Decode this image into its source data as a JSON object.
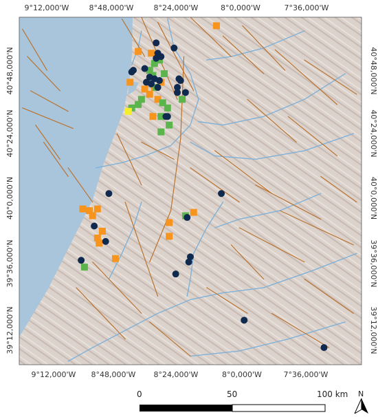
{
  "axes": {
    "top_ticks": [
      "9°12,000'W",
      "8°48,000'W",
      "8°24,000'W",
      "8°0,000'W",
      "7°36,000'W"
    ],
    "bottom_ticks": [
      "9°12,000'W",
      "8°48,000'W",
      "8°24,000'W",
      "8°0,000'W",
      "7°36,000'W"
    ],
    "left_ticks": [
      "40°48,000'N",
      "40°24,000'N",
      "40°0,000'N",
      "39°36,000'N",
      "39°12,000'N"
    ],
    "right_ticks": [
      "40°48,000'N",
      "40°24,000'N",
      "40°0,000'N",
      "39°36,000'N",
      "39°12,000'N"
    ]
  },
  "extent": {
    "lon_min": -9.35,
    "lon_max": -7.25,
    "lat_min": 39.0,
    "lat_max": 41.03
  },
  "colors": {
    "sea": "#a9c5dc",
    "land": "#dcd2cc",
    "river": "#7fb1d8",
    "fault": "#b9732e",
    "orange_site": "#f7941d",
    "green_site": "#5bb44c",
    "navy_site": "#0f2a4e",
    "yellow_site": "#f5ee2c"
  },
  "scale_bar": {
    "labels": [
      "0",
      "50",
      "100 km"
    ]
  },
  "north_arrow": {
    "label": "N",
    "icon": "north-arrow-icon"
  },
  "sites": {
    "orange": [
      [
        -8.14,
        40.98
      ],
      [
        -8.62,
        40.83
      ],
      [
        -8.54,
        40.82
      ],
      [
        -8.67,
        40.65
      ],
      [
        -8.58,
        40.61
      ],
      [
        -8.52,
        40.62
      ],
      [
        -8.55,
        40.58
      ],
      [
        -8.5,
        40.55
      ],
      [
        -8.48,
        40.65
      ],
      [
        -8.53,
        40.45
      ],
      [
        -8.96,
        39.91
      ],
      [
        -8.87,
        39.91
      ],
      [
        -8.92,
        39.9
      ],
      [
        -8.9,
        39.87
      ],
      [
        -8.84,
        39.78
      ],
      [
        -8.87,
        39.74
      ],
      [
        -8.86,
        39.71
      ],
      [
        -8.76,
        39.62
      ],
      [
        -8.43,
        39.83
      ],
      [
        -8.28,
        39.89
      ],
      [
        -8.43,
        39.75
      ]
    ],
    "green": [
      [
        -8.49,
        40.78
      ],
      [
        -8.52,
        40.76
      ],
      [
        -8.55,
        40.72
      ],
      [
        -8.53,
        40.69
      ],
      [
        -8.46,
        40.7
      ],
      [
        -8.51,
        40.62
      ],
      [
        -8.6,
        40.55
      ],
      [
        -8.62,
        40.52
      ],
      [
        -8.66,
        40.5
      ],
      [
        -8.47,
        40.53
      ],
      [
        -8.44,
        40.5
      ],
      [
        -8.48,
        40.45
      ],
      [
        -8.43,
        40.4
      ],
      [
        -8.48,
        40.36
      ],
      [
        -8.35,
        40.55
      ],
      [
        -8.33,
        39.87
      ],
      [
        -8.95,
        39.57
      ]
    ],
    "navy": [
      [
        -8.51,
        40.88
      ],
      [
        -8.4,
        40.85
      ],
      [
        -8.5,
        40.82
      ],
      [
        -8.48,
        40.8
      ],
      [
        -8.51,
        40.79
      ],
      [
        -8.58,
        40.73
      ],
      [
        -8.65,
        40.72
      ],
      [
        -8.66,
        40.71
      ],
      [
        -8.55,
        40.68
      ],
      [
        -8.52,
        40.67
      ],
      [
        -8.49,
        40.66
      ],
      [
        -8.57,
        40.65
      ],
      [
        -8.54,
        40.64
      ],
      [
        -8.5,
        40.62
      ],
      [
        -8.37,
        40.67
      ],
      [
        -8.36,
        40.66
      ],
      [
        -8.38,
        40.62
      ],
      [
        -8.38,
        40.59
      ],
      [
        -8.33,
        40.59
      ],
      [
        -8.44,
        40.45
      ],
      [
        -8.45,
        40.45
      ],
      [
        -8.8,
        40.0
      ],
      [
        -8.11,
        40.0
      ],
      [
        -8.89,
        39.81
      ],
      [
        -8.82,
        39.72
      ],
      [
        -8.32,
        39.86
      ],
      [
        -8.3,
        39.63
      ],
      [
        -8.31,
        39.6
      ],
      [
        -8.39,
        39.53
      ],
      [
        -8.97,
        39.61
      ],
      [
        -7.97,
        39.26
      ],
      [
        -7.48,
        39.1
      ]
    ],
    "yellow": [
      [
        -8.68,
        40.48
      ]
    ]
  },
  "faults": [
    [
      [
        -9.33,
        40.96
      ],
      [
        -9.18,
        40.72
      ]
    ],
    [
      [
        -9.3,
        40.8
      ],
      [
        -9.1,
        40.6
      ]
    ],
    [
      [
        -9.28,
        40.6
      ],
      [
        -9.05,
        40.48
      ]
    ],
    [
      [
        -9.33,
        40.5
      ],
      [
        -9.02,
        40.38
      ]
    ],
    [
      [
        -9.25,
        40.4
      ],
      [
        -9.1,
        40.2
      ]
    ],
    [
      [
        -9.2,
        40.3
      ],
      [
        -9.05,
        40.1
      ]
    ],
    [
      [
        -9.05,
        40.15
      ],
      [
        -8.9,
        39.95
      ]
    ],
    [
      [
        -8.72,
        41.02
      ],
      [
        -8.58,
        40.8
      ]
    ],
    [
      [
        -8.6,
        41.03
      ],
      [
        -8.38,
        40.55
      ]
    ],
    [
      [
        -8.5,
        41.0
      ],
      [
        -8.28,
        40.6
      ]
    ],
    [
      [
        -8.3,
        41.03
      ],
      [
        -8.05,
        40.8
      ]
    ],
    [
      [
        -8.1,
        40.92
      ],
      [
        -7.85,
        40.7
      ]
    ],
    [
      [
        -7.98,
        40.98
      ],
      [
        -7.72,
        40.72
      ]
    ],
    [
      [
        -7.78,
        40.84
      ],
      [
        -7.4,
        40.52
      ]
    ],
    [
      [
        -7.6,
        40.78
      ],
      [
        -7.28,
        40.58
      ]
    ],
    [
      [
        -8.34,
        40.8
      ],
      [
        -8.36,
        40.32
      ]
    ],
    [
      [
        -8.36,
        40.32
      ],
      [
        -8.42,
        39.9
      ]
    ],
    [
      [
        -8.42,
        39.9
      ],
      [
        -8.55,
        39.6
      ]
    ],
    [
      [
        -8.75,
        40.35
      ],
      [
        -8.6,
        40.05
      ]
    ],
    [
      [
        -8.7,
        39.95
      ],
      [
        -8.5,
        39.4
      ]
    ],
    [
      [
        -8.9,
        39.6
      ],
      [
        -8.6,
        39.3
      ]
    ],
    [
      [
        -9.0,
        39.45
      ],
      [
        -8.7,
        39.15
      ]
    ],
    [
      [
        -8.55,
        39.25
      ],
      [
        -8.3,
        39.05
      ]
    ],
    [
      [
        -8.3,
        40.15
      ],
      [
        -8.0,
        39.95
      ]
    ],
    [
      [
        -8.15,
        40.25
      ],
      [
        -7.8,
        40.0
      ]
    ],
    [
      [
        -7.9,
        40.05
      ],
      [
        -7.5,
        39.85
      ]
    ],
    [
      [
        -7.75,
        39.9
      ],
      [
        -7.3,
        39.7
      ]
    ],
    [
      [
        -8.0,
        39.8
      ],
      [
        -7.6,
        39.6
      ]
    ],
    [
      [
        -7.6,
        39.5
      ],
      [
        -7.3,
        39.3
      ]
    ],
    [
      [
        -7.8,
        39.3
      ],
      [
        -7.45,
        39.1
      ]
    ],
    [
      [
        -8.2,
        39.45
      ],
      [
        -7.95,
        39.3
      ]
    ],
    [
      [
        -8.05,
        39.7
      ],
      [
        -7.85,
        39.5
      ]
    ],
    [
      [
        -7.5,
        40.1
      ],
      [
        -7.28,
        39.95
      ]
    ],
    [
      [
        -8.6,
        40.3
      ],
      [
        -8.4,
        40.2
      ]
    ],
    [
      [
        -7.95,
        40.55
      ],
      [
        -7.65,
        40.3
      ]
    ],
    [
      [
        -7.7,
        40.45
      ],
      [
        -7.4,
        40.22
      ]
    ]
  ],
  "rivers": [
    [
      [
        -8.44,
        41.02
      ],
      [
        -8.4,
        40.85
      ],
      [
        -8.3,
        40.7
      ],
      [
        -8.25,
        40.55
      ],
      [
        -8.3,
        40.4
      ],
      [
        -8.42,
        40.28
      ],
      [
        -8.58,
        40.22
      ],
      [
        -8.72,
        40.18
      ],
      [
        -8.88,
        40.15
      ]
    ],
    [
      [
        -7.35,
        40.7
      ],
      [
        -7.6,
        40.55
      ],
      [
        -7.85,
        40.45
      ],
      [
        -8.1,
        40.4
      ],
      [
        -8.25,
        40.42
      ]
    ],
    [
      [
        -7.3,
        40.35
      ],
      [
        -7.6,
        40.25
      ],
      [
        -7.9,
        40.2
      ],
      [
        -8.15,
        40.22
      ],
      [
        -8.3,
        40.3
      ]
    ],
    [
      [
        -7.28,
        39.65
      ],
      [
        -7.55,
        39.55
      ],
      [
        -7.85,
        39.45
      ],
      [
        -8.1,
        39.42
      ],
      [
        -8.3,
        39.38
      ],
      [
        -8.5,
        39.3
      ],
      [
        -8.7,
        39.2
      ],
      [
        -8.9,
        39.1
      ],
      [
        -9.05,
        39.02
      ]
    ],
    [
      [
        -7.35,
        39.25
      ],
      [
        -7.7,
        39.15
      ],
      [
        -8.0,
        39.08
      ],
      [
        -8.3,
        39.05
      ]
    ],
    [
      [
        -8.1,
        39.95
      ],
      [
        -8.2,
        39.8
      ],
      [
        -8.28,
        39.65
      ],
      [
        -8.3,
        39.5
      ],
      [
        -8.32,
        39.4
      ]
    ],
    [
      [
        -8.6,
        39.95
      ],
      [
        -8.65,
        39.8
      ],
      [
        -8.72,
        39.65
      ],
      [
        -8.8,
        39.5
      ]
    ],
    [
      [
        -7.6,
        40.95
      ],
      [
        -7.85,
        40.85
      ],
      [
        -8.05,
        40.8
      ],
      [
        -8.2,
        40.78
      ]
    ],
    [
      [
        -8.6,
        40.95
      ],
      [
        -8.62,
        40.85
      ],
      [
        -8.66,
        40.75
      ]
    ],
    [
      [
        -7.5,
        40.0
      ],
      [
        -7.75,
        39.9
      ],
      [
        -8.0,
        39.85
      ],
      [
        -8.15,
        39.8
      ]
    ]
  ]
}
